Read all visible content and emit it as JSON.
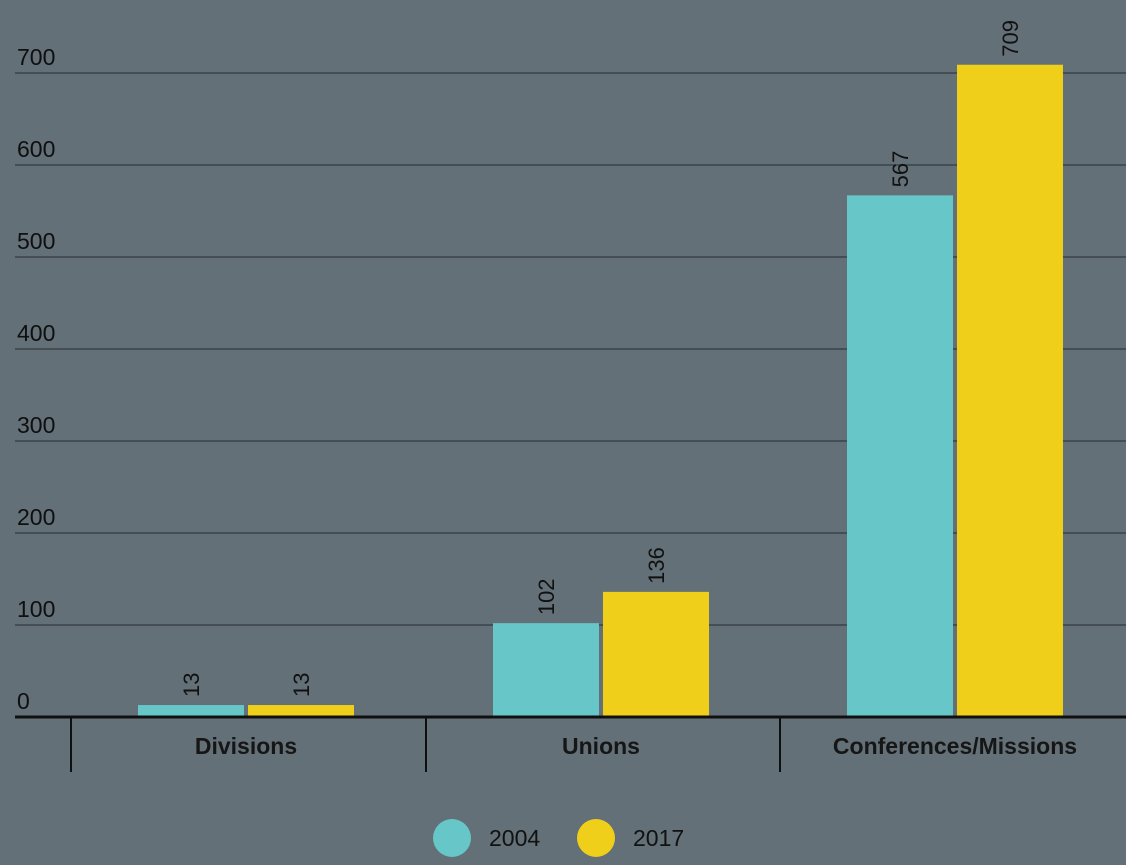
{
  "chart_data": {
    "type": "bar",
    "categories": [
      "Divisions",
      "Unions",
      "Conferences/Missions"
    ],
    "series": [
      {
        "name": "2004",
        "values": [
          13,
          102,
          567
        ],
        "color": "#66c6c8"
      },
      {
        "name": "2017",
        "values": [
          13,
          136,
          709
        ],
        "color": "#f0cf1b"
      }
    ],
    "y_ticks": [
      "0",
      "100",
      "200",
      "300",
      "400",
      "500",
      "600",
      "700"
    ],
    "ylim": [
      0,
      700
    ],
    "grid": true,
    "legend_position": "bottom-center",
    "data_labels": true,
    "data_label_rotation": "vertical"
  },
  "colors": {
    "background": "#637077",
    "gridline": "#3a4248",
    "axis": "#101010",
    "text": "#111111"
  }
}
